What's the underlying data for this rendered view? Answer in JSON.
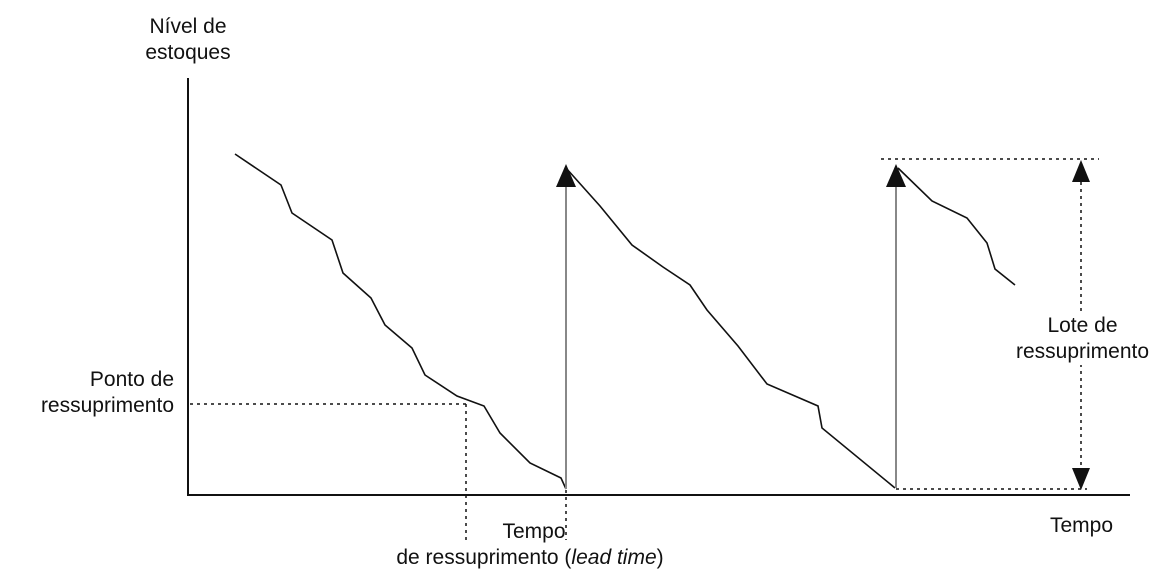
{
  "labels": {
    "y_axis": {
      "line1": "Nível de",
      "line2": "estoques"
    },
    "x_axis": "Tempo",
    "reorder_point": {
      "line1": "Ponto de",
      "line2": "ressuprimento"
    },
    "lead_time": {
      "line1": "Tempo",
      "line2_prefix": "de ressuprimento (",
      "line2_italic": "lead time",
      "line2_suffix": ")"
    },
    "lot_size": {
      "line1": "Lote de",
      "line2": "ressuprimento"
    }
  },
  "colors": {
    "ink": "#111111",
    "replenishment_arrow": "#888888"
  }
}
